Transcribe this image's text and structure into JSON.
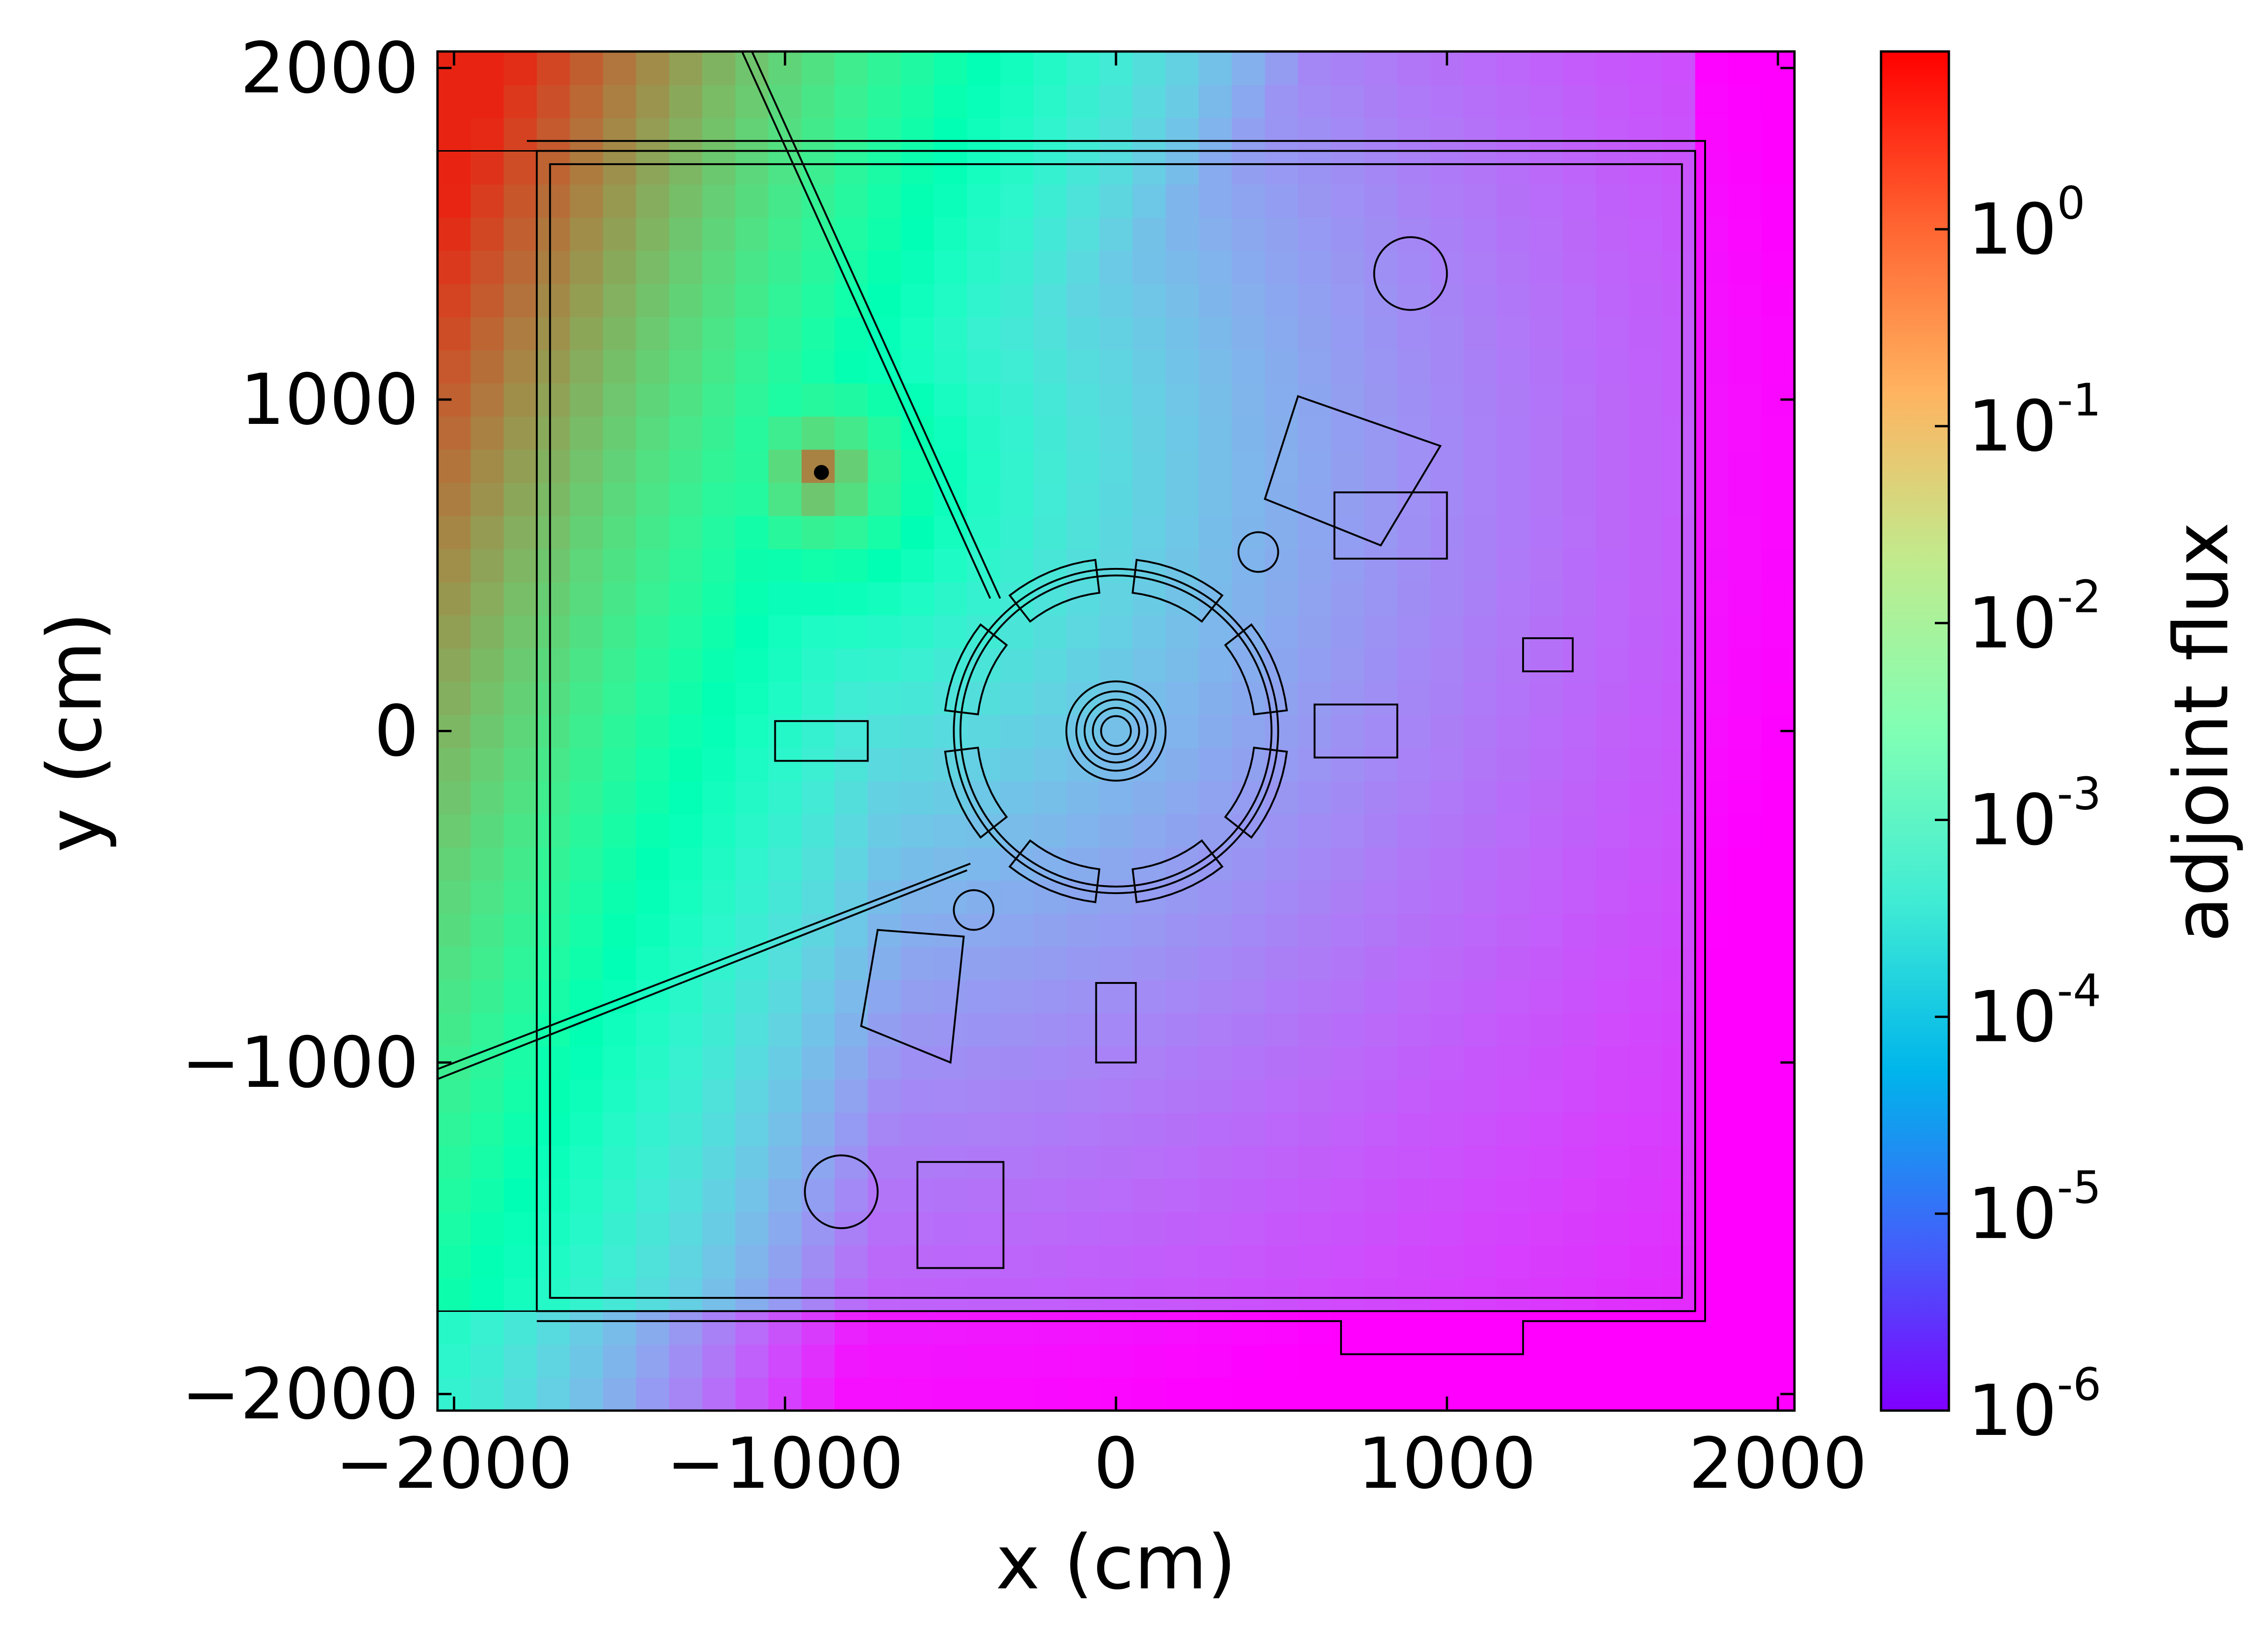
{
  "chart_data": {
    "type": "heatmap",
    "title": "",
    "xlabel": "x (cm)",
    "ylabel": "y (cm)",
    "xlim": [
      -2050,
      2050
    ],
    "ylim": [
      -2050,
      2050
    ],
    "x_ticks": [
      -2000,
      -1000,
      0,
      1000,
      2000
    ],
    "y_ticks": [
      -2000,
      -1000,
      0,
      1000,
      2000
    ],
    "x_tick_labels": [
      "−2000",
      "−1000",
      "0",
      "1000",
      "2000"
    ],
    "y_tick_labels": [
      "−2000",
      "−1000",
      "0",
      "1000",
      "2000"
    ],
    "colorbar": {
      "label": "adjoint flux",
      "scale": "log",
      "colormap": "rainbow",
      "range": [
        1e-06,
        8
      ],
      "ticks": [
        1e-06,
        1e-05,
        0.0001,
        0.001,
        0.01,
        0.1,
        1
      ],
      "tick_bases": [
        "10",
        "10",
        "10",
        "10",
        "10",
        "10",
        "10"
      ],
      "tick_exponents": [
        "-6",
        "-5",
        "-4",
        "-3",
        "-2",
        "-1",
        "0"
      ]
    },
    "source_location": {
      "x": -890,
      "y": 780,
      "log10_flux": 0.2
    },
    "grid": false,
    "geometry_overlay": "facility layout outline drawn in thin black lines"
  }
}
